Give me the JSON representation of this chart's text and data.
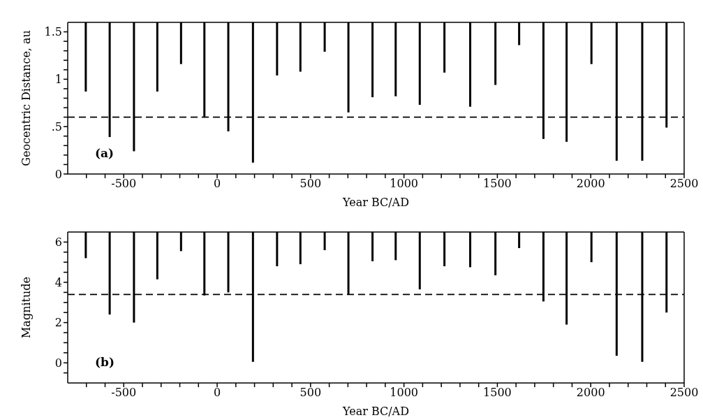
{
  "chart_data": [
    {
      "type": "bar",
      "xlabel": "Year BC/AD",
      "ylabel": "Geocentric Distance, au",
      "annotations": [
        "(a)"
      ],
      "x": [
        -703,
        -575,
        -445,
        -320,
        -193,
        -68,
        60,
        192,
        321,
        446,
        576,
        703,
        832,
        956,
        1085,
        1217,
        1355,
        1490,
        1617,
        1747,
        1871,
        2004,
        2139,
        2276,
        2406
      ],
      "base": [
        1.6,
        1.6,
        1.6,
        1.6,
        1.6,
        1.6,
        1.6,
        1.6,
        1.6,
        1.6,
        1.6,
        1.6,
        1.6,
        1.6,
        1.6,
        1.6,
        1.6,
        1.6,
        1.6,
        1.6,
        1.6,
        1.6,
        1.6,
        1.6,
        1.6
      ],
      "values": [
        -0.73,
        -1.21,
        -1.36,
        -0.73,
        -0.44,
        -1.0,
        -1.15,
        -1.48,
        -0.56,
        -0.52,
        -0.31,
        -0.95,
        -0.79,
        -0.78,
        -0.87,
        -0.53,
        -0.89,
        -0.66,
        -0.24,
        -1.23,
        -1.26,
        -0.44,
        -1.46,
        -1.46,
        -1.11
      ],
      "color": "#000000",
      "xlim": [
        -800,
        2500
      ],
      "xticks": [
        {
          "value": -700,
          "label": null
        },
        {
          "value": -600,
          "label": null
        },
        -500,
        {
          "value": -400,
          "label": null
        },
        {
          "value": -300,
          "label": null
        },
        {
          "value": -200,
          "label": null
        },
        {
          "value": -100,
          "label": null
        },
        0,
        {
          "value": 100,
          "label": null
        },
        {
          "value": 200,
          "label": null
        },
        {
          "value": 300,
          "label": null
        },
        {
          "value": 400,
          "label": null
        },
        500,
        {
          "value": 600,
          "label": null
        },
        {
          "value": 700,
          "label": null
        },
        {
          "value": 800,
          "label": null
        },
        {
          "value": 900,
          "label": null
        },
        1000,
        {
          "value": 1100,
          "label": null
        },
        {
          "value": 1200,
          "label": null
        },
        {
          "value": 1300,
          "label": null
        },
        {
          "value": 1400,
          "label": null
        },
        1500,
        {
          "value": 1600,
          "label": null
        },
        {
          "value": 1700,
          "label": null
        },
        {
          "value": 1800,
          "label": null
        },
        {
          "value": 1900,
          "label": null
        },
        2000,
        {
          "value": 2100,
          "label": null
        },
        {
          "value": 2200,
          "label": null
        },
        {
          "value": 2300,
          "label": null
        },
        {
          "value": 2400,
          "label": null
        },
        2500
      ],
      "ylim": [
        0,
        1.6
      ],
      "yticks": [
        0,
        {
          "value": 0.1,
          "label": null
        },
        {
          "value": 0.2,
          "label": null
        },
        {
          "value": 0.3,
          "label": null
        },
        {
          "value": 0.4,
          "label": null
        },
        {
          "value": 0.5,
          "label": ".5"
        },
        {
          "value": 0.6,
          "label": null
        },
        {
          "value": 0.7,
          "label": null
        },
        {
          "value": 0.8,
          "label": null
        },
        {
          "value": 0.9,
          "label": null
        },
        1,
        {
          "value": 1.1,
          "label": null
        },
        {
          "value": 1.2,
          "label": null
        },
        {
          "value": 1.3,
          "label": null
        },
        {
          "value": 1.4,
          "label": null
        },
        1.5
      ],
      "ref_lines": [
        {
          "axis": "y",
          "value": 0.6,
          "color": "#000000",
          "line_style": "dashed"
        }
      ]
    },
    {
      "type": "bar",
      "xlabel": "Year BC/AD",
      "ylabel": "Magnitude",
      "annotations": [
        "(b)"
      ],
      "x": [
        -703,
        -575,
        -445,
        -320,
        -193,
        -68,
        60,
        192,
        321,
        446,
        576,
        703,
        832,
        956,
        1085,
        1217,
        1355,
        1490,
        1617,
        1747,
        1871,
        2004,
        2139,
        2276,
        2406
      ],
      "base": [
        6.5,
        6.5,
        6.5,
        6.5,
        6.5,
        6.5,
        6.5,
        6.5,
        6.5,
        6.5,
        6.5,
        6.5,
        6.5,
        6.5,
        6.5,
        6.5,
        6.5,
        6.5,
        6.5,
        6.5,
        6.5,
        6.5,
        6.5,
        6.5,
        6.5
      ],
      "values": [
        -1.3,
        -4.1,
        -4.5,
        -2.35,
        -0.95,
        -3.15,
        -3.0,
        -6.45,
        -1.7,
        -1.6,
        -0.9,
        -3.1,
        -1.45,
        -1.4,
        -2.85,
        -1.7,
        -1.75,
        -2.15,
        -0.8,
        -3.45,
        -4.6,
        -1.5,
        -6.15,
        -6.45,
        -4.0
      ],
      "color": "#000000",
      "xlim": [
        -800,
        2500
      ],
      "xticks": [
        {
          "value": -700,
          "label": null
        },
        {
          "value": -600,
          "label": null
        },
        -500,
        {
          "value": -400,
          "label": null
        },
        {
          "value": -300,
          "label": null
        },
        {
          "value": -200,
          "label": null
        },
        {
          "value": -100,
          "label": null
        },
        0,
        {
          "value": 100,
          "label": null
        },
        {
          "value": 200,
          "label": null
        },
        {
          "value": 300,
          "label": null
        },
        {
          "value": 400,
          "label": null
        },
        500,
        {
          "value": 600,
          "label": null
        },
        {
          "value": 700,
          "label": null
        },
        {
          "value": 800,
          "label": null
        },
        {
          "value": 900,
          "label": null
        },
        1000,
        {
          "value": 1100,
          "label": null
        },
        {
          "value": 1200,
          "label": null
        },
        {
          "value": 1300,
          "label": null
        },
        {
          "value": 1400,
          "label": null
        },
        1500,
        {
          "value": 1600,
          "label": null
        },
        {
          "value": 1700,
          "label": null
        },
        {
          "value": 1800,
          "label": null
        },
        {
          "value": 1900,
          "label": null
        },
        2000,
        {
          "value": 2100,
          "label": null
        },
        {
          "value": 2200,
          "label": null
        },
        {
          "value": 2300,
          "label": null
        },
        {
          "value": 2400,
          "label": null
        },
        2500
      ],
      "ylim": [
        -1,
        6.5
      ],
      "yticks": [
        {
          "value": -0.5,
          "label": null
        },
        0,
        {
          "value": 0.5,
          "label": null
        },
        {
          "value": 1,
          "label": null
        },
        {
          "value": 1.5,
          "label": null
        },
        2,
        {
          "value": 2.5,
          "label": null
        },
        {
          "value": 3,
          "label": null
        },
        {
          "value": 3.5,
          "label": null
        },
        4,
        {
          "value": 4.5,
          "label": null
        },
        {
          "value": 5,
          "label": null
        },
        {
          "value": 5.5,
          "label": null
        },
        6
      ],
      "ref_lines": [
        {
          "axis": "y",
          "value": 3.4,
          "color": "#000000",
          "line_style": "dashed"
        }
      ]
    }
  ]
}
